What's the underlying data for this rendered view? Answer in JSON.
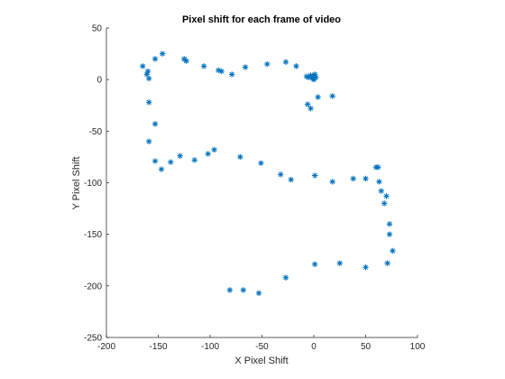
{
  "chart_data": {
    "type": "scatter",
    "title": "Pixel shift for each frame of video",
    "xlabel": "X Pixel Shift",
    "ylabel": "Y Pixel Shift",
    "xlim": [
      -200,
      100
    ],
    "ylim": [
      -250,
      50
    ],
    "xticks": [
      -200,
      -150,
      -100,
      -50,
      0,
      50,
      100
    ],
    "yticks": [
      -250,
      -200,
      -150,
      -100,
      -50,
      0,
      50
    ],
    "marker": "asterisk",
    "grid": false,
    "color": "#0072bd",
    "points": [
      {
        "x": -165,
        "y": 13
      },
      {
        "x": -161,
        "y": 5
      },
      {
        "x": -160,
        "y": 8
      },
      {
        "x": -159,
        "y": 1
      },
      {
        "x": -153,
        "y": 20
      },
      {
        "x": -146,
        "y": 25
      },
      {
        "x": -125,
        "y": 20
      },
      {
        "x": -123,
        "y": 18
      },
      {
        "x": -106,
        "y": 13
      },
      {
        "x": -92,
        "y": 9
      },
      {
        "x": -89,
        "y": 8
      },
      {
        "x": -79,
        "y": 5
      },
      {
        "x": -66,
        "y": 12
      },
      {
        "x": -45,
        "y": 15
      },
      {
        "x": -27,
        "y": 17
      },
      {
        "x": -17,
        "y": 13
      },
      {
        "x": -7,
        "y": 3
      },
      {
        "x": -5,
        "y": 2
      },
      {
        "x": -3,
        "y": 4
      },
      {
        "x": -1,
        "y": 1
      },
      {
        "x": 0,
        "y": 3
      },
      {
        "x": 1,
        "y": 5
      },
      {
        "x": 2,
        "y": 2
      },
      {
        "x": 0,
        "y": 0
      },
      {
        "x": -6,
        "y": -24
      },
      {
        "x": -3,
        "y": -28
      },
      {
        "x": 4,
        "y": -17
      },
      {
        "x": 18,
        "y": -16
      },
      {
        "x": -159,
        "y": -22
      },
      {
        "x": -153,
        "y": -43
      },
      {
        "x": -159,
        "y": -60
      },
      {
        "x": -153,
        "y": -79
      },
      {
        "x": -147,
        "y": -87
      },
      {
        "x": -138,
        "y": -80
      },
      {
        "x": -129,
        "y": -74
      },
      {
        "x": -115,
        "y": -78
      },
      {
        "x": -102,
        "y": -72
      },
      {
        "x": -96,
        "y": -68
      },
      {
        "x": -71,
        "y": -75
      },
      {
        "x": -51,
        "y": -81
      },
      {
        "x": -32,
        "y": -92
      },
      {
        "x": -22,
        "y": -97
      },
      {
        "x": 1,
        "y": -93
      },
      {
        "x": 18,
        "y": -99
      },
      {
        "x": 38,
        "y": -96
      },
      {
        "x": 50,
        "y": -96
      },
      {
        "x": 60,
        "y": -85
      },
      {
        "x": 62,
        "y": -85
      },
      {
        "x": 63,
        "y": -99
      },
      {
        "x": 65,
        "y": -108
      },
      {
        "x": 68,
        "y": -120
      },
      {
        "x": 70,
        "y": -113
      },
      {
        "x": 73,
        "y": -140
      },
      {
        "x": 73,
        "y": -150
      },
      {
        "x": 76,
        "y": -166
      },
      {
        "x": 71,
        "y": -178
      },
      {
        "x": 25,
        "y": -178
      },
      {
        "x": 1,
        "y": -179
      },
      {
        "x": 50,
        "y": -182
      },
      {
        "x": -27,
        "y": -192
      },
      {
        "x": -81,
        "y": -204
      },
      {
        "x": -68,
        "y": -204
      },
      {
        "x": -53,
        "y": -207
      }
    ]
  }
}
